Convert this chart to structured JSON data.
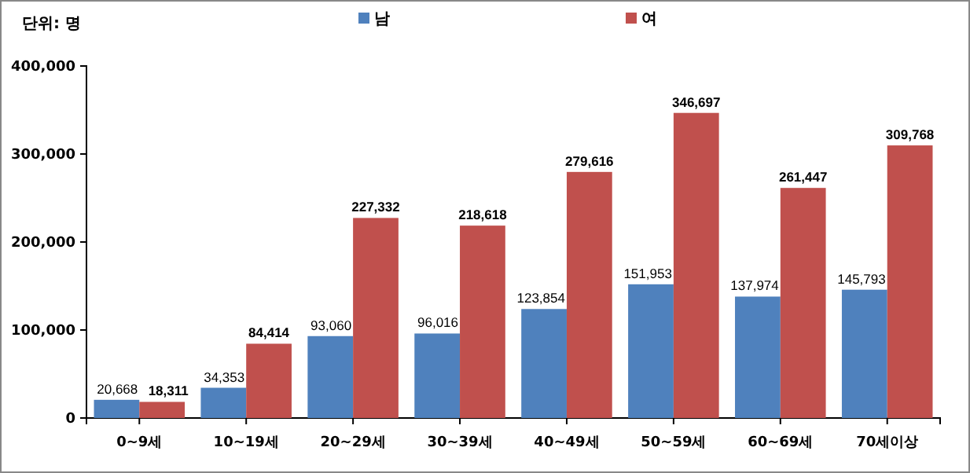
{
  "chart_data": {
    "type": "bar",
    "annotations": [
      "단위: 명"
    ],
    "categories": [
      "0~9세",
      "10~19세",
      "20~29세",
      "30~39세",
      "40~49세",
      "50~59세",
      "60~69세",
      "70세이상"
    ],
    "series": [
      {
        "name": "남",
        "color": "#4f81bd",
        "values": [
          20668,
          34353,
          93060,
          96016,
          123854,
          151953,
          137974,
          145793
        ],
        "value_labels": [
          "20,668",
          "34,353",
          "93,060",
          "96,016",
          "123,854",
          "151,953",
          "137,974",
          "145,793"
        ]
      },
      {
        "name": "여",
        "color": "#c0504d",
        "values": [
          18311,
          84414,
          227332,
          218618,
          279616,
          346697,
          261447,
          309768
        ],
        "value_labels": [
          "18,311",
          "84,414",
          "227,332",
          "218,618",
          "279,616",
          "346,697",
          "261,447",
          "309,768"
        ]
      }
    ],
    "ylim": [
      0,
      400000
    ],
    "yticks": [
      0,
      {
        "value": 100000,
        "label": "100,000"
      },
      {
        "value": 200000,
        "label": "200,000"
      },
      {
        "value": 300000,
        "label": "300,000"
      },
      {
        "value": 400000,
        "label": "400,000"
      }
    ],
    "grid": false,
    "legend": "top"
  }
}
